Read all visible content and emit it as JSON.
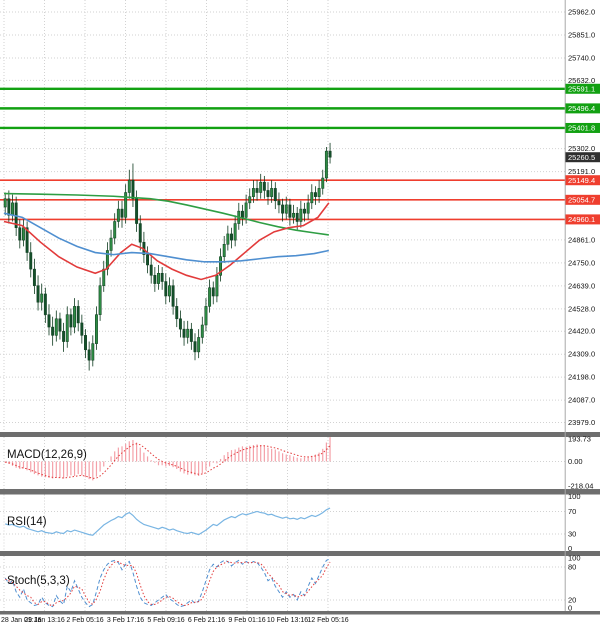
{
  "chart_data": {
    "type": "candlestick",
    "title": "",
    "timeframe_labels": [
      "28 Jan 01:16",
      "29 Jan 13:16",
      "2 Feb 05:16",
      "3 Feb 17:16",
      "5 Feb 09:16",
      "6 Feb 21:16",
      "9 Feb 01:16",
      "10 Feb 13:16",
      "12 Feb 05:16"
    ],
    "price_ticks": [
      25962,
      25851,
      25740,
      25632,
      25302,
      25191,
      24861,
      24750,
      24639,
      24528,
      24420,
      24309,
      24198,
      24087,
      23979
    ],
    "levels": {
      "resistance": [
        25591.1,
        25496.4,
        25401.8
      ],
      "support": [
        25149.4,
        25054.7,
        24960.1
      ],
      "last_price": 25260.5
    },
    "candles_ohlc": [
      [
        25020,
        25090,
        24980,
        25060
      ],
      [
        25060,
        25100,
        24940,
        24980
      ],
      [
        24980,
        25080,
        24950,
        25040
      ],
      [
        25040,
        25070,
        24880,
        24920
      ],
      [
        24920,
        24960,
        24820,
        24860
      ],
      [
        24860,
        24960,
        24830,
        24920
      ],
      [
        24920,
        24950,
        24760,
        24800
      ],
      [
        24800,
        24850,
        24680,
        24720
      ],
      [
        24720,
        24770,
        24600,
        24640
      ],
      [
        24640,
        24690,
        24520,
        24560
      ],
      [
        24560,
        24650,
        24520,
        24600
      ],
      [
        24600,
        24630,
        24460,
        24500
      ],
      [
        24500,
        24550,
        24400,
        24440
      ],
      [
        24440,
        24490,
        24350,
        24400
      ],
      [
        24400,
        24520,
        24370,
        24480
      ],
      [
        24480,
        24510,
        24380,
        24420
      ],
      [
        24420,
        24460,
        24320,
        24370
      ],
      [
        24370,
        24540,
        24340,
        24500
      ],
      [
        24500,
        24530,
        24400,
        24440
      ],
      [
        24440,
        24580,
        24410,
        24540
      ],
      [
        24540,
        24570,
        24420,
        24460
      ],
      [
        24460,
        24500,
        24360,
        24400
      ],
      [
        24400,
        24430,
        24290,
        24330
      ],
      [
        24330,
        24370,
        24230,
        24280
      ],
      [
        24280,
        24400,
        24250,
        24360
      ],
      [
        24360,
        24540,
        24330,
        24500
      ],
      [
        24500,
        24680,
        24470,
        24640
      ],
      [
        24640,
        24760,
        24610,
        24720
      ],
      [
        24720,
        24850,
        24690,
        24810
      ],
      [
        24810,
        24910,
        24780,
        24870
      ],
      [
        24870,
        24990,
        24840,
        24950
      ],
      [
        24950,
        25050,
        24920,
        25010
      ],
      [
        25010,
        25050,
        24920,
        24970
      ],
      [
        24970,
        25130,
        24940,
        25090
      ],
      [
        25090,
        25200,
        25060,
        25150
      ],
      [
        25150,
        25230,
        25020,
        25060
      ],
      [
        25060,
        25100,
        24900,
        24940
      ],
      [
        24940,
        24980,
        24810,
        24850
      ],
      [
        24850,
        24900,
        24750,
        24790
      ],
      [
        24790,
        24830,
        24700,
        24740
      ],
      [
        24740,
        24780,
        24650,
        24690
      ],
      [
        24690,
        24730,
        24610,
        24650
      ],
      [
        24650,
        24740,
        24620,
        24700
      ],
      [
        24700,
        24730,
        24620,
        24660
      ],
      [
        24660,
        24700,
        24550,
        24590
      ],
      [
        24590,
        24680,
        24560,
        24640
      ],
      [
        24640,
        24670,
        24500,
        24540
      ],
      [
        24540,
        24580,
        24440,
        24480
      ],
      [
        24480,
        24520,
        24390,
        24430
      ],
      [
        24430,
        24470,
        24350,
        24390
      ],
      [
        24390,
        24470,
        24360,
        24430
      ],
      [
        24430,
        24460,
        24330,
        24370
      ],
      [
        24370,
        24410,
        24280,
        24320
      ],
      [
        24320,
        24430,
        24290,
        24390
      ],
      [
        24390,
        24490,
        24360,
        24450
      ],
      [
        24450,
        24580,
        24420,
        24540
      ],
      [
        24540,
        24670,
        24510,
        24630
      ],
      [
        24630,
        24660,
        24550,
        24590
      ],
      [
        24590,
        24730,
        24560,
        24690
      ],
      [
        24690,
        24820,
        24660,
        24780
      ],
      [
        24780,
        24880,
        24750,
        24840
      ],
      [
        24840,
        24930,
        24810,
        24890
      ],
      [
        24890,
        24920,
        24820,
        24860
      ],
      [
        24860,
        24980,
        24830,
        24940
      ],
      [
        24940,
        25040,
        24910,
        25000
      ],
      [
        25000,
        25030,
        24930,
        24970
      ],
      [
        24970,
        25080,
        24940,
        25040
      ],
      [
        25040,
        25110,
        25010,
        25070
      ],
      [
        25070,
        25150,
        25040,
        25110
      ],
      [
        25110,
        25150,
        25050,
        25090
      ],
      [
        25090,
        25180,
        25060,
        25140
      ],
      [
        25140,
        25170,
        25060,
        25100
      ],
      [
        25100,
        25140,
        25030,
        25070
      ],
      [
        25070,
        25150,
        25040,
        25110
      ],
      [
        25110,
        25140,
        25010,
        25050
      ],
      [
        25050,
        25090,
        24990,
        25030
      ],
      [
        25030,
        25060,
        24950,
        24990
      ],
      [
        24990,
        25070,
        24960,
        25030
      ],
      [
        25030,
        25060,
        24930,
        24970
      ],
      [
        24970,
        25030,
        24940,
        24990
      ],
      [
        24990,
        25020,
        24910,
        24950
      ],
      [
        24950,
        25050,
        24920,
        25010
      ],
      [
        25010,
        25040,
        24950,
        24990
      ],
      [
        24990,
        25080,
        24960,
        25040
      ],
      [
        25040,
        25130,
        25010,
        25090
      ],
      [
        25090,
        25120,
        25030,
        25070
      ],
      [
        25070,
        25150,
        25040,
        25110
      ],
      [
        25110,
        25200,
        25080,
        25160
      ],
      [
        25160,
        25310,
        25140,
        25290
      ],
      [
        25290,
        25330,
        25230,
        25260.5
      ]
    ],
    "moving_averages": [
      {
        "name": "ma-slow-green",
        "color": "#2f9e44",
        "points": [
          [
            0,
            25085
          ],
          [
            10,
            25082
          ],
          [
            20,
            25078
          ],
          [
            30,
            25072
          ],
          [
            40,
            25060
          ],
          [
            45,
            25048
          ],
          [
            50,
            25030
          ],
          [
            55,
            25010
          ],
          [
            60,
            24990
          ],
          [
            65,
            24968
          ],
          [
            70,
            24945
          ],
          [
            75,
            24925
          ],
          [
            80,
            24908
          ],
          [
            85,
            24895
          ],
          [
            89,
            24885
          ]
        ]
      },
      {
        "name": "ma-mid-red",
        "color": "#e23b3b",
        "points": [
          [
            0,
            24950
          ],
          [
            5,
            24930
          ],
          [
            10,
            24850
          ],
          [
            15,
            24780
          ],
          [
            20,
            24730
          ],
          [
            25,
            24700
          ],
          [
            28,
            24720
          ],
          [
            32,
            24800
          ],
          [
            35,
            24840
          ],
          [
            38,
            24820
          ],
          [
            42,
            24760
          ],
          [
            46,
            24720
          ],
          [
            50,
            24690
          ],
          [
            54,
            24670
          ],
          [
            58,
            24690
          ],
          [
            62,
            24740
          ],
          [
            66,
            24800
          ],
          [
            70,
            24860
          ],
          [
            74,
            24900
          ],
          [
            78,
            24920
          ],
          [
            82,
            24930
          ],
          [
            86,
            24970
          ],
          [
            89,
            25040
          ]
        ]
      },
      {
        "name": "ma-fast-blue",
        "color": "#4f8fd0",
        "points": [
          [
            0,
            24990
          ],
          [
            5,
            24970
          ],
          [
            10,
            24920
          ],
          [
            15,
            24870
          ],
          [
            20,
            24830
          ],
          [
            25,
            24800
          ],
          [
            30,
            24790
          ],
          [
            35,
            24800
          ],
          [
            40,
            24795
          ],
          [
            45,
            24780
          ],
          [
            50,
            24765
          ],
          [
            55,
            24755
          ],
          [
            60,
            24755
          ],
          [
            65,
            24760
          ],
          [
            70,
            24770
          ],
          [
            75,
            24780
          ],
          [
            80,
            24785
          ],
          [
            85,
            24795
          ],
          [
            89,
            24810
          ]
        ]
      }
    ],
    "indicators": {
      "macd": {
        "label": "MACD(12,26,9)",
        "axis": [
          193.73,
          0,
          -218.04
        ],
        "histogram": [
          -10,
          -20,
          -35,
          -50,
          -60,
          -55,
          -70,
          -85,
          -100,
          -110,
          -120,
          -125,
          -130,
          -135,
          -125,
          -130,
          -135,
          -120,
          -110,
          -115,
          -100,
          -110,
          -125,
          -140,
          -150,
          -120,
          -80,
          -40,
          0,
          40,
          80,
          110,
          120,
          140,
          160,
          170,
          150,
          110,
          70,
          40,
          10,
          -10,
          -30,
          -30,
          -40,
          -35,
          -45,
          -60,
          -80,
          -95,
          -105,
          -100,
          -110,
          -115,
          -95,
          -70,
          -40,
          -10,
          -15,
          20,
          50,
          75,
          90,
          95,
          110,
          120,
          115,
          125,
          130,
          135,
          130,
          125,
          110,
          100,
          95,
          80,
          65,
          55,
          50,
          40,
          30,
          25,
          30,
          35,
          45,
          55,
          70,
          100,
          150,
          193
        ],
        "signal": [
          -5,
          -10,
          -20,
          -32,
          -45,
          -52,
          -58,
          -68,
          -80,
          -92,
          -103,
          -112,
          -120,
          -126,
          -127,
          -128,
          -131,
          -128,
          -122,
          -119,
          -113,
          -111,
          -116,
          -125,
          -134,
          -132,
          -115,
          -90,
          -60,
          -28,
          8,
          42,
          68,
          92,
          115,
          133,
          140,
          132,
          112,
          88,
          62,
          38,
          16,
          1,
          -12,
          -20,
          -28,
          -38,
          -52,
          -66,
          -79,
          -86,
          -94,
          -101,
          -99,
          -90,
          -74,
          -53,
          -40,
          -20,
          3,
          26,
          47,
          62,
          78,
          92,
          100,
          108,
          115,
          121,
          124,
          124,
          120,
          113,
          107,
          98,
          87,
          77,
          68,
          59,
          49,
          41,
          37,
          36,
          39,
          44,
          52,
          67,
          94,
          126
        ]
      },
      "rsi": {
        "label": "RSI(14)",
        "axis": [
          100,
          70,
          30,
          0
        ],
        "guide_levels": [
          70,
          30
        ],
        "values": [
          48,
          46,
          47,
          44,
          42,
          44,
          40,
          38,
          36,
          34,
          36,
          33,
          32,
          31,
          34,
          32,
          31,
          36,
          34,
          37,
          35,
          33,
          31,
          29,
          28,
          34,
          40,
          46,
          50,
          54,
          57,
          61,
          59,
          65,
          68,
          63,
          56,
          51,
          47,
          45,
          43,
          41,
          39,
          42,
          40,
          37,
          39,
          36,
          34,
          32,
          31,
          33,
          31,
          29,
          33,
          37,
          42,
          47,
          45,
          50,
          55,
          58,
          61,
          59,
          63,
          66,
          64,
          66,
          68,
          70,
          68,
          67,
          64,
          65,
          62,
          60,
          58,
          60,
          57,
          58,
          56,
          59,
          57,
          60,
          63,
          61,
          64,
          68,
          73,
          76
        ]
      },
      "stoch": {
        "label": "Stoch(5,3,3)",
        "axis": [
          100,
          80,
          20,
          0
        ],
        "guide_levels": [
          80,
          20
        ],
        "k": [
          60,
          50,
          55,
          35,
          25,
          40,
          20,
          15,
          10,
          12,
          25,
          15,
          10,
          8,
          28,
          18,
          12,
          45,
          35,
          55,
          40,
          25,
          15,
          8,
          12,
          35,
          60,
          75,
          85,
          90,
          92,
          88,
          75,
          85,
          90,
          70,
          45,
          25,
          15,
          12,
          10,
          15,
          20,
          25,
          30,
          22,
          18,
          12,
          8,
          10,
          15,
          20,
          14,
          18,
          35,
          55,
          75,
          85,
          80,
          88,
          92,
          90,
          82,
          88,
          92,
          85,
          90,
          86,
          90,
          88,
          80,
          70,
          55,
          60,
          45,
          35,
          25,
          35,
          25,
          30,
          20,
          35,
          28,
          45,
          60,
          50,
          65,
          80,
          92,
          95
        ],
        "d": [
          58,
          55,
          52,
          45,
          38,
          33,
          28,
          25,
          15,
          12,
          17,
          17,
          12,
          9,
          15,
          18,
          19,
          25,
          33,
          45,
          43,
          40,
          27,
          16,
          12,
          22,
          36,
          57,
          73,
          83,
          89,
          90,
          85,
          83,
          83,
          82,
          68,
          47,
          28,
          17,
          12,
          12,
          15,
          20,
          25,
          26,
          23,
          17,
          13,
          10,
          11,
          15,
          16,
          17,
          22,
          36,
          55,
          72,
          80,
          84,
          87,
          90,
          88,
          87,
          88,
          88,
          89,
          87,
          89,
          88,
          86,
          79,
          68,
          62,
          53,
          47,
          35,
          32,
          28,
          30,
          25,
          28,
          28,
          36,
          44,
          52,
          58,
          65,
          79,
          89
        ]
      }
    },
    "colors": {
      "grid": "#d2d2d2",
      "separator": "#6e6e6e",
      "axis_line": "#a8a8a8",
      "up_candle": "#2e8b44",
      "down_candle": "#14502a",
      "candle_border": "#0d3a1e",
      "resistance_line": "#12a112",
      "support_line": "#ef3e2e",
      "last_price_bg": "#2f2f2f",
      "macd_hist": "#f4a0a8",
      "macd_signal": "#e23b3b",
      "rsi_line": "#79b5e3",
      "stoch_k": "#4f8fd0",
      "stoch_d": "#e23b3b",
      "text": "#111111"
    }
  }
}
